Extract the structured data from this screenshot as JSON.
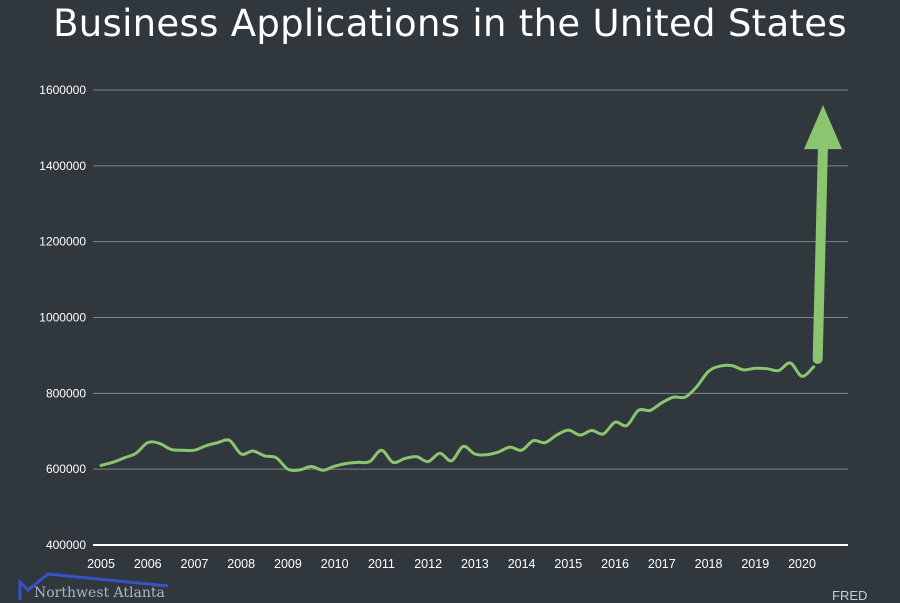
{
  "chart_data": {
    "type": "line",
    "title": "Business Applications in the United States",
    "ylim": [
      400000,
      1600000
    ],
    "yticks": [
      400000,
      600000,
      800000,
      1000000,
      1200000,
      1400000,
      1600000
    ],
    "ytick_labels": [
      "400000",
      "600000",
      "800000",
      "1000000",
      "1200000",
      "1400000",
      "1600000"
    ],
    "xlim": [
      2005,
      2021
    ],
    "xticks": [
      2005,
      2006,
      2007,
      2008,
      2009,
      2010,
      2011,
      2012,
      2013,
      2014,
      2015,
      2016,
      2017,
      2018,
      2019,
      2020
    ],
    "xtick_labels": [
      "2005",
      "2006",
      "2007",
      "2008",
      "2009",
      "2010",
      "2011",
      "2012",
      "2013",
      "2014",
      "2015",
      "2016",
      "2017",
      "2018",
      "2019",
      "2020"
    ],
    "grid": "horizontal",
    "line_color": "#8cc56f",
    "x": [
      2005.0,
      2005.25,
      2005.5,
      2005.75,
      2006.0,
      2006.25,
      2006.5,
      2006.75,
      2007.0,
      2007.25,
      2007.5,
      2007.75,
      2008.0,
      2008.25,
      2008.5,
      2008.75,
      2009.0,
      2009.25,
      2009.5,
      2009.75,
      2010.0,
      2010.25,
      2010.5,
      2010.75,
      2011.0,
      2011.25,
      2011.5,
      2011.75,
      2012.0,
      2012.25,
      2012.5,
      2012.75,
      2013.0,
      2013.25,
      2013.5,
      2013.75,
      2014.0,
      2014.25,
      2014.5,
      2014.75,
      2015.0,
      2015.25,
      2015.5,
      2015.75,
      2016.0,
      2016.25,
      2016.5,
      2016.75,
      2017.0,
      2017.25,
      2017.5,
      2017.75,
      2018.0,
      2018.25,
      2018.5,
      2018.75,
      2019.0,
      2019.25,
      2019.5,
      2019.75,
      2020.0,
      2020.25
    ],
    "values": [
      610000,
      618000,
      630000,
      642000,
      670000,
      668000,
      652000,
      650000,
      650000,
      662000,
      670000,
      676000,
      640000,
      648000,
      635000,
      630000,
      600000,
      598000,
      607000,
      597000,
      608000,
      615000,
      618000,
      620000,
      650000,
      618000,
      628000,
      633000,
      620000,
      642000,
      622000,
      660000,
      640000,
      638000,
      645000,
      658000,
      650000,
      675000,
      670000,
      690000,
      703000,
      690000,
      702000,
      693000,
      724000,
      715000,
      755000,
      755000,
      775000,
      790000,
      790000,
      818000,
      858000,
      872000,
      873000,
      862000,
      866000,
      865000,
      860000,
      880000,
      845000,
      870000
    ],
    "arrow": {
      "from": [
        2020.25,
        880000
      ],
      "to": [
        2020.45,
        1560000
      ]
    }
  },
  "logo": {
    "text": "Northwest Atlanta",
    "name": "company-logo"
  },
  "source": "FRED"
}
